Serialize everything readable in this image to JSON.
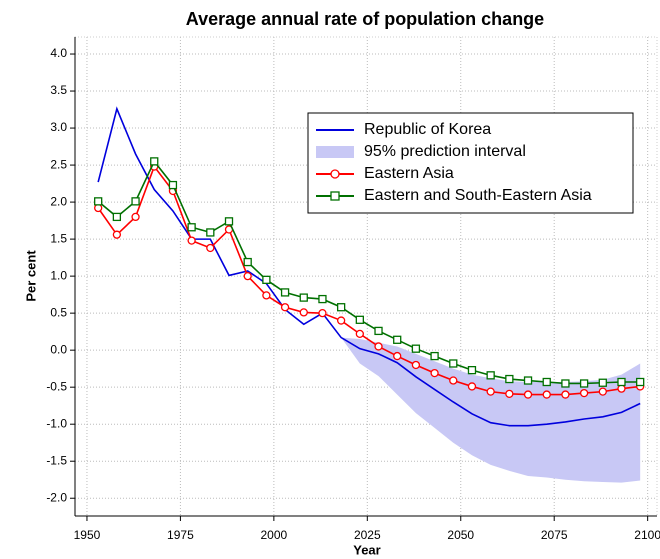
{
  "chart_data": {
    "type": "line",
    "title": "Average annual rate of population change",
    "x_label": "Year",
    "y_label": "Per cent",
    "x": [
      1953,
      1958,
      1963,
      1968,
      1973,
      1978,
      1983,
      1988,
      1993,
      1998,
      2003,
      2008,
      2013,
      2018,
      2023,
      2028,
      2033,
      2038,
      2043,
      2048,
      2053,
      2058,
      2063,
      2068,
      2073,
      2078,
      2083,
      2088,
      2093,
      2098
    ],
    "xlim": [
      1946.8,
      2102.5
    ],
    "xticks": [
      1950,
      1975,
      2000,
      2025,
      2050,
      2075,
      2100
    ],
    "ylim": [
      -2.24,
      4.23
    ],
    "yticks": [
      {
        "value": -2,
        "label": "-2.0"
      },
      {
        "value": -1.5,
        "label": "-1.5"
      },
      {
        "value": -1,
        "label": "-1.0"
      },
      {
        "value": -0.5,
        "label": "-0.5"
      },
      {
        "value": 0,
        "label": "0.0"
      },
      {
        "value": 0.5,
        "label": "0.5"
      },
      {
        "value": 1,
        "label": "1.0"
      },
      {
        "value": 1.5,
        "label": "1.5"
      },
      {
        "value": 2,
        "label": "2.0"
      },
      {
        "value": 2.5,
        "label": "2.5"
      },
      {
        "value": 3,
        "label": "3.0"
      },
      {
        "value": 3.5,
        "label": "3.5"
      },
      {
        "value": 4,
        "label": "4.0"
      }
    ],
    "grid": true,
    "series": [
      {
        "name": "Republic of Korea",
        "color": "#0000dd",
        "marker": "none",
        "values": [
          2.27,
          3.26,
          2.65,
          2.17,
          1.88,
          1.5,
          1.5,
          1.01,
          1.07,
          0.9,
          0.55,
          0.35,
          0.5,
          0.17,
          0.02,
          -0.05,
          -0.17,
          -0.36,
          -0.53,
          -0.7,
          -0.86,
          -0.98,
          -1.02,
          -1.02,
          -1.0,
          -0.97,
          -0.93,
          -0.9,
          -0.84,
          -0.72
        ]
      },
      {
        "name": "95% prediction interval",
        "color": "#c8c8f5",
        "marker": "band",
        "lower": [
          null,
          null,
          null,
          null,
          null,
          null,
          null,
          null,
          null,
          null,
          null,
          null,
          null,
          0.17,
          -0.18,
          -0.35,
          -0.6,
          -0.85,
          -1.05,
          -1.25,
          -1.42,
          -1.55,
          -1.63,
          -1.7,
          -1.72,
          -1.75,
          -1.77,
          -1.78,
          -1.79,
          -1.76
        ],
        "upper": [
          null,
          null,
          null,
          null,
          null,
          null,
          null,
          null,
          null,
          null,
          null,
          null,
          null,
          0.17,
          0.15,
          0.1,
          0.05,
          -0.05,
          -0.15,
          -0.25,
          -0.33,
          -0.38,
          -0.42,
          -0.43,
          -0.43,
          -0.43,
          -0.42,
          -0.4,
          -0.33,
          -0.18
        ]
      },
      {
        "name": "Eastern Asia",
        "color": "#ff0000",
        "marker": "circle",
        "values": [
          1.92,
          1.56,
          1.8,
          2.48,
          2.15,
          1.48,
          1.38,
          1.63,
          1.0,
          0.74,
          0.58,
          0.51,
          0.5,
          0.4,
          0.22,
          0.05,
          -0.08,
          -0.2,
          -0.31,
          -0.41,
          -0.49,
          -0.56,
          -0.59,
          -0.6,
          -0.6,
          -0.6,
          -0.58,
          -0.56,
          -0.52,
          -0.49
        ]
      },
      {
        "name": "Eastern and South-Eastern Asia",
        "color": "#007000",
        "marker": "square",
        "values": [
          2.01,
          1.8,
          2.01,
          2.55,
          2.23,
          1.66,
          1.59,
          1.74,
          1.19,
          0.95,
          0.78,
          0.71,
          0.69,
          0.58,
          0.41,
          0.26,
          0.14,
          0.02,
          -0.08,
          -0.18,
          -0.27,
          -0.34,
          -0.39,
          -0.41,
          -0.43,
          -0.45,
          -0.45,
          -0.44,
          -0.43,
          -0.43
        ]
      }
    ]
  }
}
